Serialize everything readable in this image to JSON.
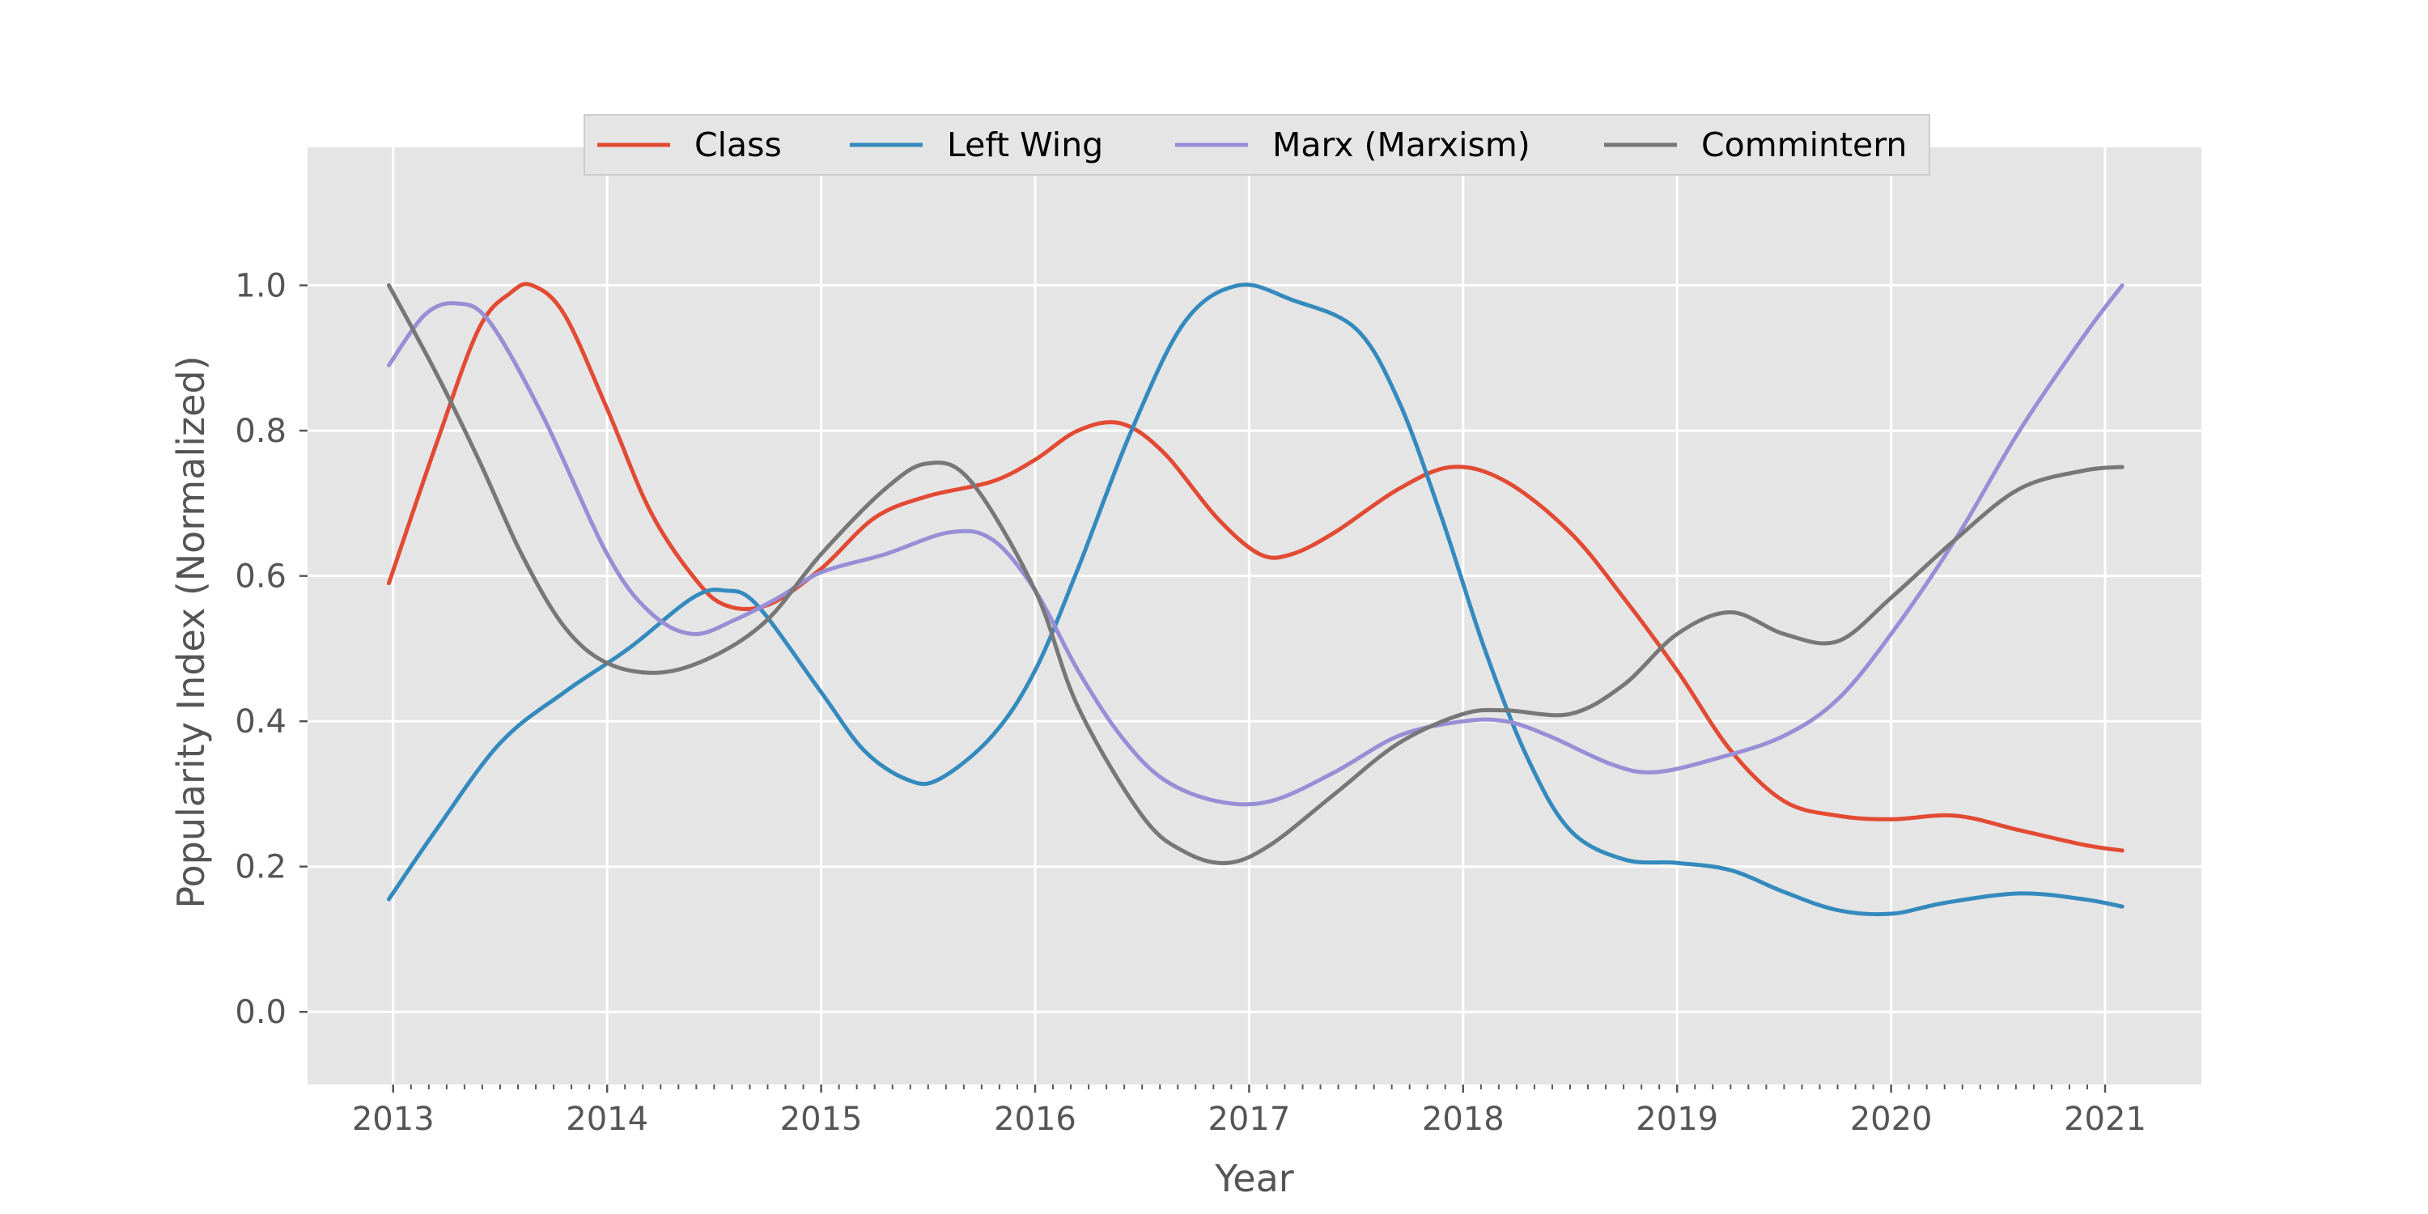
{
  "chart_data": {
    "type": "line",
    "title": "",
    "xlabel": "Year",
    "ylabel": "Popularity Index (Normalized)",
    "xlim": [
      2012.6,
      2021.45
    ],
    "ylim": [
      -0.1,
      1.19
    ],
    "x_ticks": [
      "2013",
      "2014",
      "2015",
      "2016",
      "2017",
      "2018",
      "2019",
      "2020",
      "2021"
    ],
    "y_ticks": [
      "0.0",
      "0.2",
      "0.4",
      "0.6",
      "0.8",
      "1.0"
    ],
    "grid": true,
    "legend_position": "top-center",
    "colors": {
      "background": "#e5e5e5",
      "grid": "#ffffff",
      "Class": "#e24a33",
      "Left Wing": "#348abd",
      "Marx (Marxism)": "#988ed5",
      "Commintern": "#777777"
    },
    "series": [
      {
        "name": "Class",
        "x": [
          2012.98,
          2013.2,
          2013.4,
          2013.55,
          2013.65,
          2013.8,
          2014.0,
          2014.2,
          2014.4,
          2014.55,
          2014.75,
          2015.0,
          2015.25,
          2015.5,
          2015.8,
          2016.0,
          2016.2,
          2016.4,
          2016.6,
          2016.85,
          2017.05,
          2017.2,
          2017.4,
          2017.7,
          2017.95,
          2018.2,
          2018.5,
          2018.75,
          2019.0,
          2019.25,
          2019.5,
          2019.75,
          2020.0,
          2020.3,
          2020.6,
          2020.9,
          2021.08
        ],
        "y": [
          0.59,
          0.78,
          0.94,
          0.99,
          1.0,
          0.96,
          0.83,
          0.69,
          0.6,
          0.56,
          0.56,
          0.61,
          0.68,
          0.71,
          0.73,
          0.76,
          0.8,
          0.81,
          0.77,
          0.68,
          0.63,
          0.63,
          0.66,
          0.72,
          0.75,
          0.73,
          0.66,
          0.57,
          0.47,
          0.36,
          0.29,
          0.27,
          0.265,
          0.27,
          0.25,
          0.23,
          0.222
        ]
      },
      {
        "name": "Left Wing",
        "x": [
          2012.98,
          2013.2,
          2013.5,
          2013.8,
          2014.1,
          2014.4,
          2014.55,
          2014.7,
          2015.0,
          2015.2,
          2015.4,
          2015.55,
          2015.8,
          2016.0,
          2016.2,
          2016.45,
          2016.7,
          2016.95,
          2017.2,
          2017.5,
          2017.7,
          2017.9,
          2018.1,
          2018.3,
          2018.5,
          2018.75,
          2019.0,
          2019.25,
          2019.5,
          2019.75,
          2020.0,
          2020.25,
          2020.6,
          2020.9,
          2021.08
        ],
        "y": [
          0.155,
          0.25,
          0.37,
          0.44,
          0.5,
          0.57,
          0.58,
          0.56,
          0.44,
          0.36,
          0.32,
          0.32,
          0.38,
          0.47,
          0.61,
          0.8,
          0.95,
          1.0,
          0.98,
          0.94,
          0.84,
          0.68,
          0.5,
          0.35,
          0.25,
          0.21,
          0.205,
          0.195,
          0.165,
          0.14,
          0.135,
          0.15,
          0.163,
          0.155,
          0.145
        ]
      },
      {
        "name": "Marx (Marxism)",
        "x": [
          2012.98,
          2013.15,
          2013.3,
          2013.45,
          2013.7,
          2014.0,
          2014.2,
          2014.4,
          2014.6,
          2014.8,
          2015.0,
          2015.3,
          2015.6,
          2015.8,
          2016.0,
          2016.2,
          2016.4,
          2016.6,
          2016.85,
          2017.1,
          2017.4,
          2017.7,
          2018.0,
          2018.2,
          2018.4,
          2018.7,
          2018.9,
          2019.2,
          2019.5,
          2019.75,
          2020.0,
          2020.3,
          2020.6,
          2020.9,
          2021.08
        ],
        "y": [
          0.89,
          0.96,
          0.975,
          0.95,
          0.82,
          0.63,
          0.55,
          0.52,
          0.54,
          0.57,
          0.605,
          0.63,
          0.66,
          0.65,
          0.58,
          0.47,
          0.38,
          0.32,
          0.29,
          0.29,
          0.33,
          0.38,
          0.4,
          0.4,
          0.38,
          0.34,
          0.33,
          0.35,
          0.38,
          0.43,
          0.52,
          0.65,
          0.8,
          0.93,
          1.0
        ]
      },
      {
        "name": "Commintern",
        "x": [
          2012.98,
          2013.2,
          2013.4,
          2013.6,
          2013.8,
          2014.0,
          2014.25,
          2014.5,
          2014.75,
          2015.0,
          2015.3,
          2015.5,
          2015.7,
          2016.0,
          2016.2,
          2016.5,
          2016.7,
          2016.9,
          2017.1,
          2017.4,
          2017.7,
          2018.0,
          2018.2,
          2018.5,
          2018.75,
          2019.0,
          2019.25,
          2019.5,
          2019.75,
          2020.0,
          2020.3,
          2020.6,
          2020.9,
          2021.08
        ],
        "y": [
          1.0,
          0.88,
          0.76,
          0.63,
          0.53,
          0.48,
          0.467,
          0.49,
          0.54,
          0.63,
          0.72,
          0.755,
          0.73,
          0.58,
          0.42,
          0.27,
          0.22,
          0.205,
          0.23,
          0.3,
          0.37,
          0.41,
          0.415,
          0.41,
          0.45,
          0.52,
          0.55,
          0.52,
          0.51,
          0.57,
          0.65,
          0.72,
          0.745,
          0.75
        ]
      }
    ]
  }
}
